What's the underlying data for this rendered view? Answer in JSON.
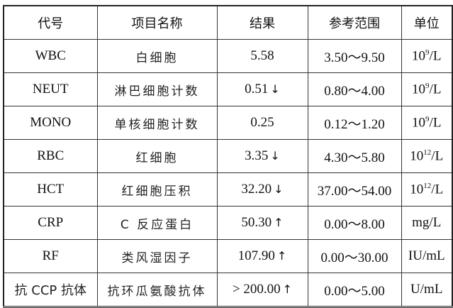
{
  "headers": [
    "代号",
    "项目名称",
    "结果",
    "参考范围",
    "单位"
  ],
  "rows": [
    {
      "code": "WBC",
      "name": "白细胞",
      "result": "5.58",
      "flag": "",
      "range": "3.50～9.50",
      "unit_base": "10",
      "unit_exp": "9",
      "unit_rest": "/L"
    },
    {
      "code": "NEUT",
      "name": "淋巴细胞计数",
      "result": "0.51",
      "flag": "↓",
      "range": "0.80～4.00",
      "unit_base": "10",
      "unit_exp": "9",
      "unit_rest": "/L"
    },
    {
      "code": "MONO",
      "name": "单核细胞计数",
      "result": "0.25",
      "flag": "",
      "range": "0.12～1.20",
      "unit_base": "10",
      "unit_exp": "9",
      "unit_rest": "/L"
    },
    {
      "code": "RBC",
      "name": "红细胞",
      "result": "3.35",
      "flag": "↓",
      "range": "4.30～5.80",
      "unit_base": "10",
      "unit_exp": "12",
      "unit_rest": "/L"
    },
    {
      "code": "HCT",
      "name": "红细胞压积",
      "result": "32.20",
      "flag": "↓",
      "range": "37.00～54.00",
      "unit_base": "10",
      "unit_exp": "12",
      "unit_rest": "/L"
    },
    {
      "code": "CRP",
      "name": "C 反应蛋白",
      "result": "50.30",
      "flag": "↑",
      "range": "0.00～8.00",
      "unit_base": "mg/L",
      "unit_exp": "",
      "unit_rest": ""
    },
    {
      "code": "RF",
      "name": "类风湿因子",
      "result": "107.90",
      "flag": "↑",
      "range": "0.00～30.00",
      "unit_base": "IU/mL",
      "unit_exp": "",
      "unit_rest": ""
    },
    {
      "code": "抗 CCP 抗体",
      "name": "抗环瓜氨酸抗体",
      "result": "> 200.00",
      "flag": "↑",
      "range": "0.00～5.00",
      "unit_base": "U/mL",
      "unit_exp": "",
      "unit_rest": ""
    }
  ]
}
